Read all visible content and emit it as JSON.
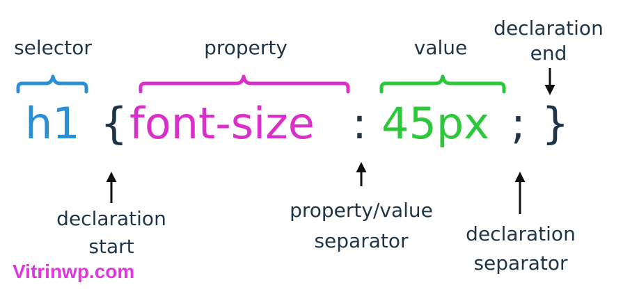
{
  "labels": {
    "selector": "selector",
    "property": "property",
    "value": "value",
    "declaration_end_line1": "declaration",
    "declaration_end_line2": "end",
    "declaration_start_line1": "declaration",
    "declaration_start_line2": "start",
    "separator_line1": "property/value",
    "separator_line2": "separator",
    "declaration_separator_line1": "declaration",
    "declaration_separator_line2": "separator"
  },
  "code": {
    "selector": "h1",
    "open_brace": "{",
    "property": "font-size",
    "colon": ":",
    "value": "45px",
    "semicolon": ";",
    "close_brace": "}"
  },
  "colors": {
    "selector": "#2b8fd6",
    "property": "#d830c8",
    "value": "#2cc83a",
    "text": "#1f3447",
    "watermark": "#dd38dd"
  },
  "watermark": "Vitrinwp.com"
}
